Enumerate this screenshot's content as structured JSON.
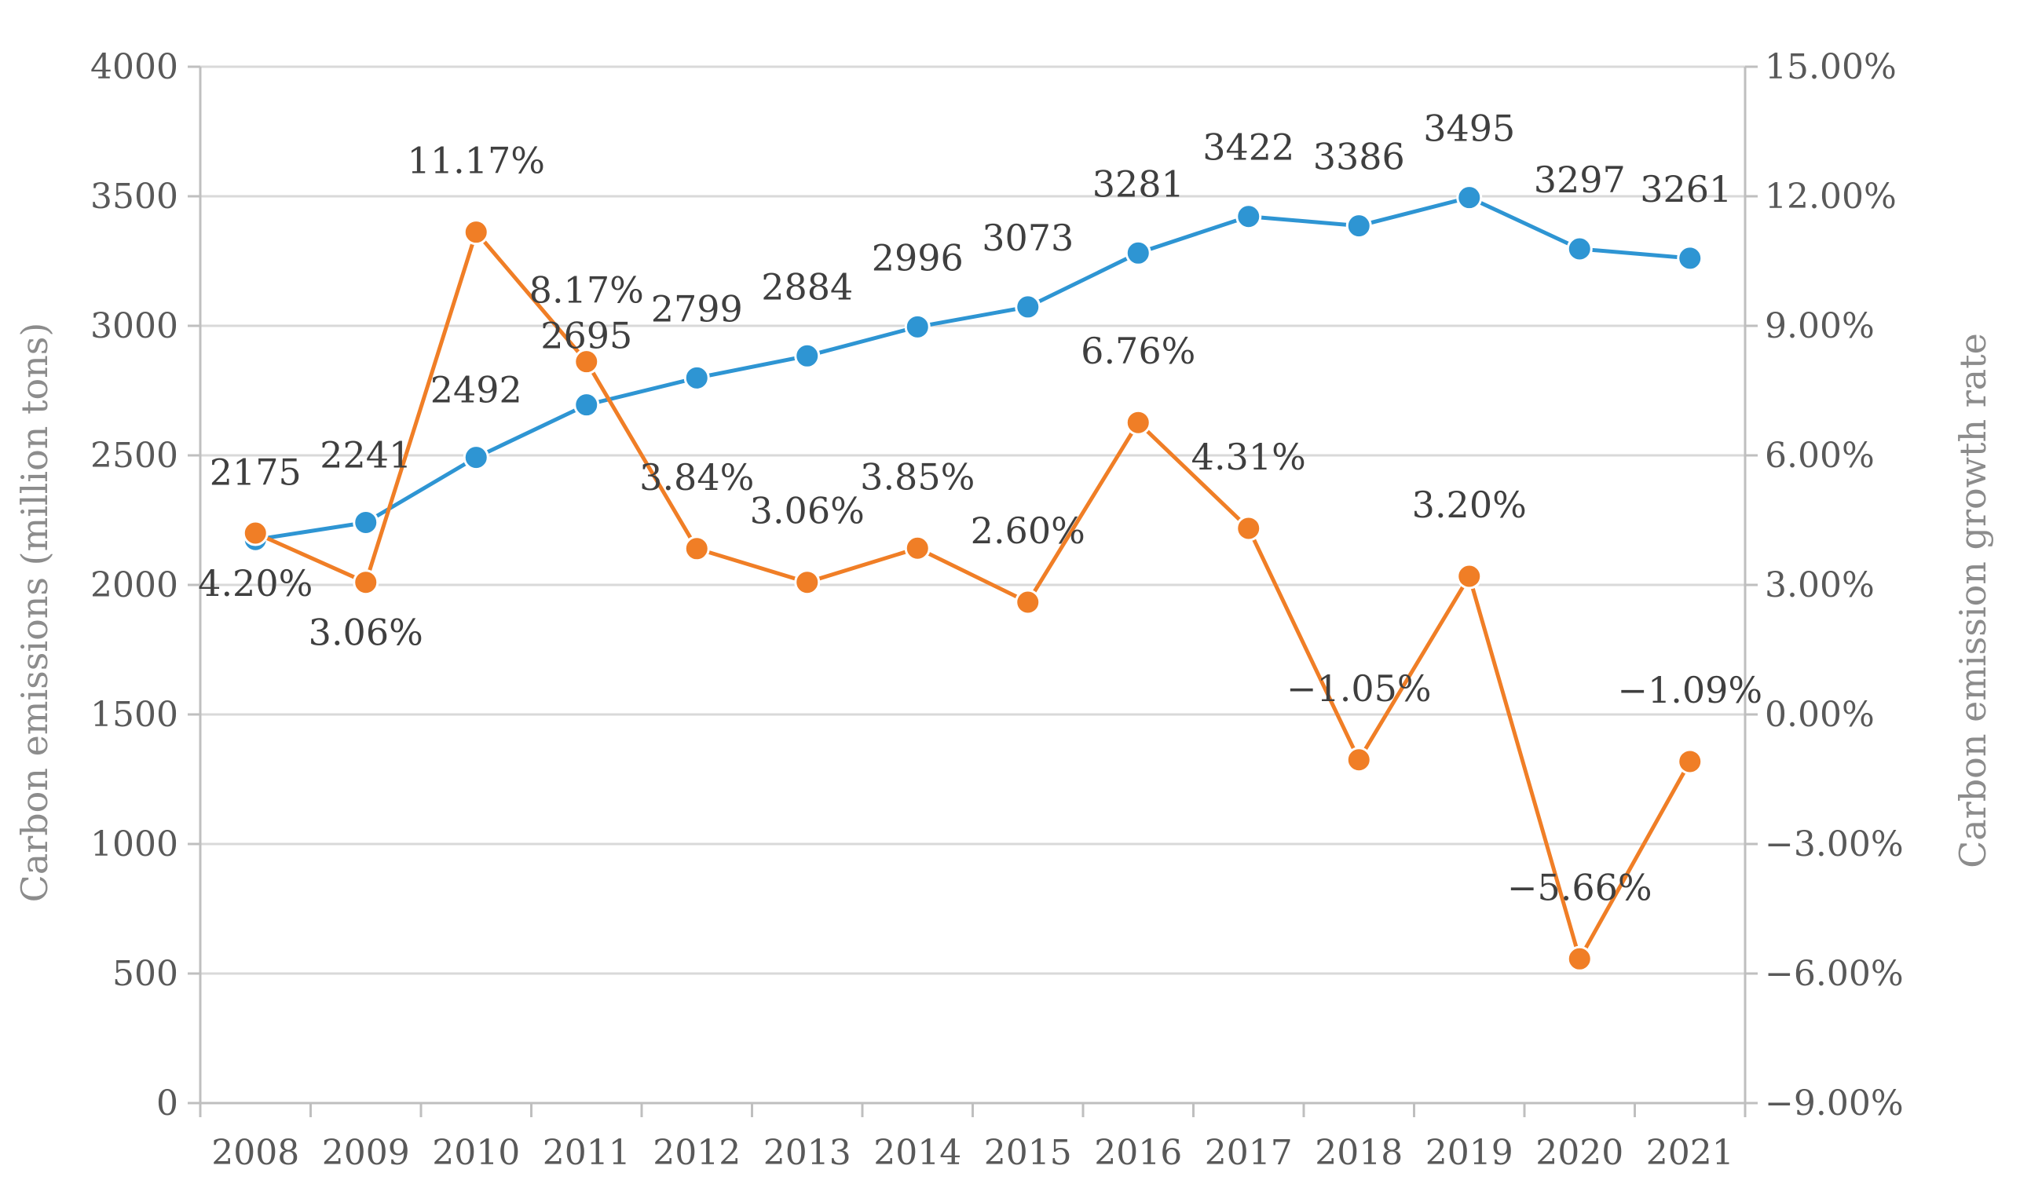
{
  "chart_data": {
    "type": "line",
    "categories": [
      "2008",
      "2009",
      "2010",
      "2011",
      "2012",
      "2013",
      "2014",
      "2015",
      "2016",
      "2017",
      "2018",
      "2019",
      "2020",
      "2021"
    ],
    "series": [
      {
        "axis": "left",
        "color": "#2e95d3",
        "values": [
          2175,
          2241,
          2492,
          2695,
          2799,
          2884,
          2996,
          3073,
          3281,
          3422,
          3386,
          3495,
          3297,
          3261
        ],
        "labels": [
          "2175",
          "2241",
          "2492",
          "2695",
          "2799",
          "2884",
          "2996",
          "3073",
          "3281",
          "3422",
          "3386",
          "3495",
          "3297",
          "3261"
        ]
      },
      {
        "axis": "right",
        "color": "#f07e26",
        "values": [
          4.2,
          3.06,
          11.17,
          8.17,
          3.84,
          3.06,
          3.85,
          2.6,
          6.76,
          4.31,
          -1.05,
          3.2,
          -5.66,
          -1.09
        ],
        "labels": [
          "4.20%",
          "3.06%",
          "11.17%",
          "8.17%",
          "3.84%",
          "3.06%",
          "3.85%",
          "2.60%",
          "6.76%",
          "4.31%",
          "−1.05%",
          "3.20%",
          "−5.66%",
          "−1.09%"
        ]
      }
    ],
    "ylabel": "Carbon emissions (million tons)",
    "y2label": "Carbon emission growth rate",
    "ylim": [
      0,
      4000
    ],
    "y2lim": [
      -9,
      15
    ],
    "yticks": [
      "0",
      "500",
      "1000",
      "1500",
      "2000",
      "2500",
      "3000",
      "3500",
      "4000"
    ],
    "y2ticks": [
      "−9.00%",
      "−6.00%",
      "−3.00%",
      "0.00%",
      "3.00%",
      "6.00%",
      "9.00%",
      "12.00%",
      "15.00%"
    ],
    "grid": true,
    "legend": "none"
  }
}
